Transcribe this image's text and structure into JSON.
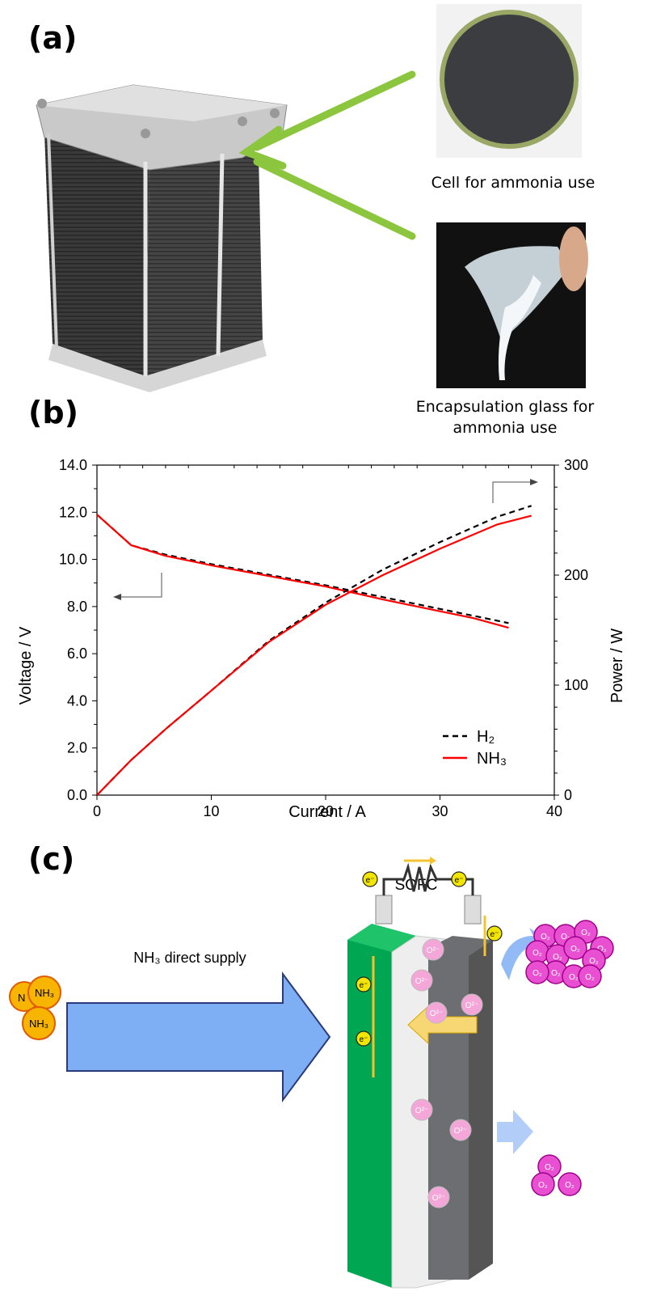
{
  "panels": {
    "a": {
      "label": "(a)",
      "cell_caption": "Cell for ammonia use",
      "glass_caption_line1": "Encapsulation glass for",
      "glass_caption_line2": "ammonia use",
      "arrow_color": "#8cc63f"
    },
    "b": {
      "label": "(b)"
    },
    "c": {
      "label": "(c)",
      "sofc_label": "SOFC",
      "supply_label": "NH₃ direct supply",
      "nh3": "NH₃",
      "nh3_partial": "N",
      "electron": "e⁻",
      "oxide_ion": "O²⁻",
      "o2": "O₂",
      "colors": {
        "anode": "#00a651",
        "cathode": "#6d6e71",
        "supply_arrow": "#7eaef4",
        "o2": "#e84fd1",
        "nh3": "#f7b500",
        "current": "#f4c430"
      }
    }
  },
  "chart_data": {
    "type": "line",
    "xlabel": "Current / A",
    "ylabel": "Voltage / V",
    "y2label": "Power / W",
    "xlim": [
      0,
      40
    ],
    "ylim": [
      0,
      14
    ],
    "y2lim": [
      0,
      300
    ],
    "xticks": [
      "0",
      "10",
      "20",
      "30",
      "40"
    ],
    "yticks": [
      "0.0",
      "2.0",
      "4.0",
      "6.0",
      "8.0",
      "10.0",
      "12.0",
      "14.0"
    ],
    "y2ticks": [
      "0",
      "100",
      "200",
      "300"
    ],
    "legend_position": "lower-right",
    "series": [
      {
        "name": "H₂",
        "axis": "voltage",
        "style": "dashed",
        "color": "#000000",
        "x": [
          0,
          3,
          6,
          10,
          15,
          20,
          25,
          30,
          33,
          36
        ],
        "y": [
          11.9,
          10.6,
          10.2,
          9.8,
          9.35,
          8.9,
          8.4,
          7.9,
          7.6,
          7.3
        ]
      },
      {
        "name": "NH₃",
        "axis": "voltage",
        "style": "solid",
        "color": "#ff0000",
        "x": [
          0,
          3,
          6,
          10,
          15,
          20,
          25,
          30,
          33,
          36
        ],
        "y": [
          11.9,
          10.6,
          10.15,
          9.75,
          9.3,
          8.85,
          8.3,
          7.8,
          7.5,
          7.1
        ]
      },
      {
        "name": "H₂",
        "axis": "power",
        "style": "dashed",
        "color": "#000000",
        "x": [
          0,
          3,
          6,
          10,
          15,
          20,
          25,
          30,
          35,
          38
        ],
        "y": [
          0,
          32,
          60,
          95,
          140,
          175,
          205,
          230,
          253,
          263
        ]
      },
      {
        "name": "NH₃",
        "axis": "power",
        "style": "solid",
        "color": "#ff0000",
        "x": [
          0,
          3,
          6,
          10,
          15,
          20,
          25,
          30,
          35,
          38
        ],
        "y": [
          0,
          32,
          60,
          95,
          139,
          173,
          200,
          224,
          246,
          254
        ]
      }
    ]
  }
}
